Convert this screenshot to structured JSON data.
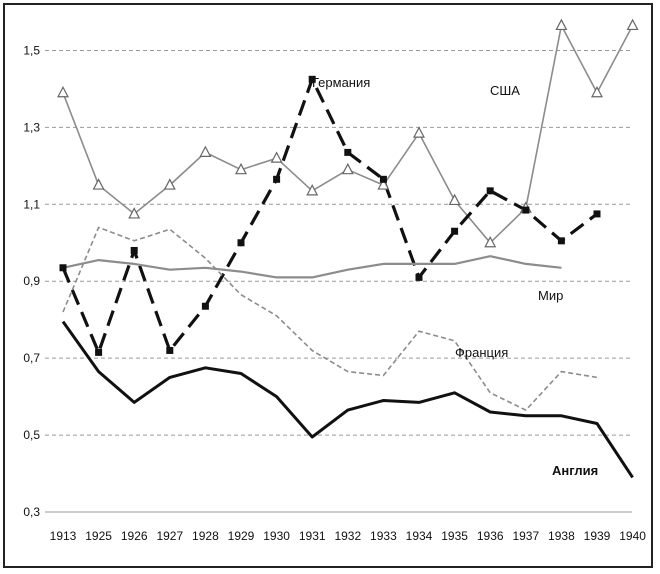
{
  "chart_data": {
    "type": "line",
    "categories": [
      "1913",
      "1925",
      "1926",
      "1927",
      "1928",
      "1929",
      "1930",
      "1931",
      "1932",
      "1933",
      "1934",
      "1935",
      "1936",
      "1937",
      "1938",
      "1939",
      "1940"
    ],
    "ylim": [
      0.3,
      1.6
    ],
    "yticks": [
      "0,3",
      "0,5",
      "0,7",
      "0,9",
      "1,1",
      "1,3",
      "1,5"
    ],
    "ytick_values": [
      0.3,
      0.5,
      0.7,
      0.9,
      1.1,
      1.3,
      1.5
    ],
    "grid": "horizontal dashed",
    "series": [
      {
        "name": "США",
        "color": "#8c8c8c",
        "style": "solid-thin",
        "marker": "triangle",
        "values": [
          1.39,
          1.15,
          1.075,
          1.15,
          1.235,
          1.19,
          1.22,
          1.135,
          1.19,
          1.15,
          1.285,
          1.11,
          1.0,
          1.09,
          1.565,
          1.39,
          1.565
        ]
      },
      {
        "name": "Германия",
        "color": "#111111",
        "style": "dashed-thick",
        "marker": "square",
        "values": [
          0.935,
          0.715,
          0.98,
          0.72,
          0.835,
          1.0,
          1.165,
          1.425,
          1.235,
          1.165,
          0.91,
          1.03,
          1.135,
          1.085,
          1.005,
          1.075,
          null
        ]
      },
      {
        "name": "Мир",
        "color": "#8c8c8c",
        "style": "solid-medium",
        "marker": "none",
        "values": [
          0.935,
          0.955,
          0.945,
          0.93,
          0.935,
          0.925,
          0.91,
          0.91,
          0.93,
          0.945,
          0.945,
          0.945,
          0.965,
          0.945,
          0.935,
          null,
          null
        ]
      },
      {
        "name": "Франция",
        "color": "#8c8c8c",
        "style": "dashed-thin",
        "marker": "none",
        "values": [
          0.82,
          1.04,
          1.005,
          1.035,
          0.96,
          0.865,
          0.81,
          0.72,
          0.665,
          0.655,
          0.77,
          0.745,
          0.61,
          0.565,
          0.665,
          0.65,
          null
        ]
      },
      {
        "name": "Англия",
        "color": "#111111",
        "style": "solid-thick",
        "marker": "none",
        "values": [
          0.795,
          0.665,
          0.585,
          0.65,
          0.675,
          0.66,
          0.6,
          0.495,
          0.565,
          0.59,
          0.585,
          0.61,
          0.56,
          0.55,
          0.55,
          0.53,
          0.39
        ]
      }
    ]
  }
}
